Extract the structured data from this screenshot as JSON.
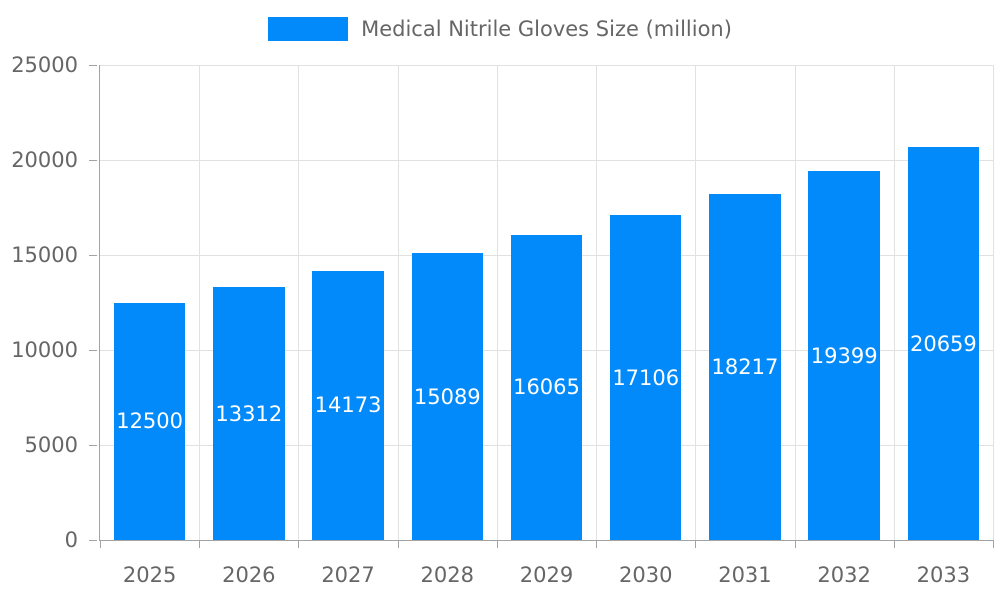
{
  "chart_data": {
    "type": "bar",
    "title": "Medical Nitrile Gloves Size (million)",
    "legend": {
      "entries": [
        "Medical Nitrile Gloves Size (million)"
      ],
      "position": "top-center"
    },
    "categories": [
      "2025",
      "2026",
      "2027",
      "2028",
      "2029",
      "2030",
      "2031",
      "2032",
      "2033"
    ],
    "series": [
      {
        "name": "Medical Nitrile Gloves Size (million)",
        "values": [
          12500,
          13312,
          14173,
          15089,
          16065,
          17106,
          18217,
          19399,
          20659
        ]
      }
    ],
    "bar_value_labels": [
      "12500",
      "13312",
      "14173",
      "15089",
      "16065",
      "17106",
      "18217",
      "19399",
      "20659"
    ],
    "xlabel": "",
    "ylabel": "",
    "ylim": [
      0,
      25000
    ],
    "yticks": [
      0,
      5000,
      10000,
      15000,
      20000,
      25000
    ],
    "grid": true,
    "colors": {
      "bar": "#028AFA",
      "grid": "#e1e1e1",
      "axis": "#a3a3a3",
      "tick_text": "#666666",
      "bar_label_text": "#ffffff",
      "background": "#ffffff"
    }
  }
}
